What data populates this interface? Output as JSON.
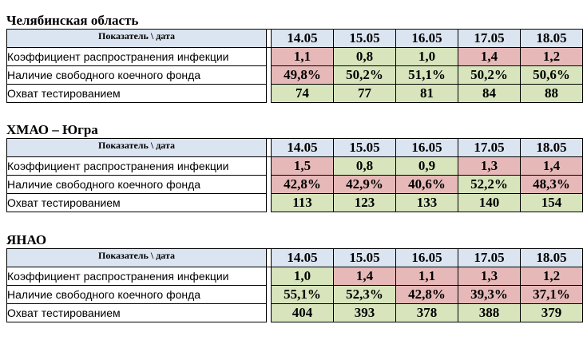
{
  "colors": {
    "header_bg": "#dbe4f1",
    "good": "#d7e4bc",
    "bad": "#e6b9b8"
  },
  "header": {
    "label": "Показатель \\ дата",
    "dates": [
      "14.05",
      "15.05",
      "16.05",
      "17.05",
      "18.05"
    ]
  },
  "regions": [
    {
      "name": "Челябинская область",
      "rows": [
        {
          "label": "Коэффициент распространения инфекции",
          "values": [
            "1,1",
            "0,8",
            "1,0",
            "1,4",
            "1,2"
          ],
          "status": [
            "red",
            "green",
            "green",
            "red",
            "red"
          ]
        },
        {
          "label": "Наличие свободного коечного фонда",
          "values": [
            "49,8%",
            "50,2%",
            "51,1%",
            "50,2%",
            "50,6%"
          ],
          "status": [
            "red",
            "green",
            "green",
            "green",
            "green"
          ]
        },
        {
          "label": "Охват тестированием",
          "values": [
            "74",
            "77",
            "81",
            "84",
            "88"
          ],
          "status": [
            "green",
            "green",
            "green",
            "green",
            "green"
          ]
        }
      ]
    },
    {
      "name": "ХМАО – Югра",
      "rows": [
        {
          "label": "Коэффициент распространения инфекции",
          "values": [
            "1,5",
            "0,8",
            "0,9",
            "1,3",
            "1,4"
          ],
          "status": [
            "red",
            "green",
            "green",
            "red",
            "red"
          ]
        },
        {
          "label": "Наличие свободного коечного фонда",
          "values": [
            "42,8%",
            "42,9%",
            "40,6%",
            "52,2%",
            "48,3%"
          ],
          "status": [
            "red",
            "red",
            "red",
            "green",
            "red"
          ]
        },
        {
          "label": "Охват тестированием",
          "values": [
            "113",
            "123",
            "133",
            "140",
            "154"
          ],
          "status": [
            "green",
            "green",
            "green",
            "green",
            "green"
          ]
        }
      ]
    },
    {
      "name": "ЯНАО",
      "rows": [
        {
          "label": "Коэффициент распространения инфекции",
          "values": [
            "1,0",
            "1,4",
            "1,1",
            "1,3",
            "1,2"
          ],
          "status": [
            "green",
            "red",
            "red",
            "red",
            "red"
          ]
        },
        {
          "label": "Наличие свободного коечного фонда",
          "values": [
            "55,1%",
            "52,3%",
            "42,8%",
            "39,3%",
            "37,1%"
          ],
          "status": [
            "green",
            "green",
            "red",
            "red",
            "red"
          ]
        },
        {
          "label": "Охват тестированием",
          "values": [
            "404",
            "393",
            "378",
            "388",
            "379"
          ],
          "status": [
            "green",
            "green",
            "green",
            "green",
            "green"
          ]
        }
      ]
    }
  ]
}
